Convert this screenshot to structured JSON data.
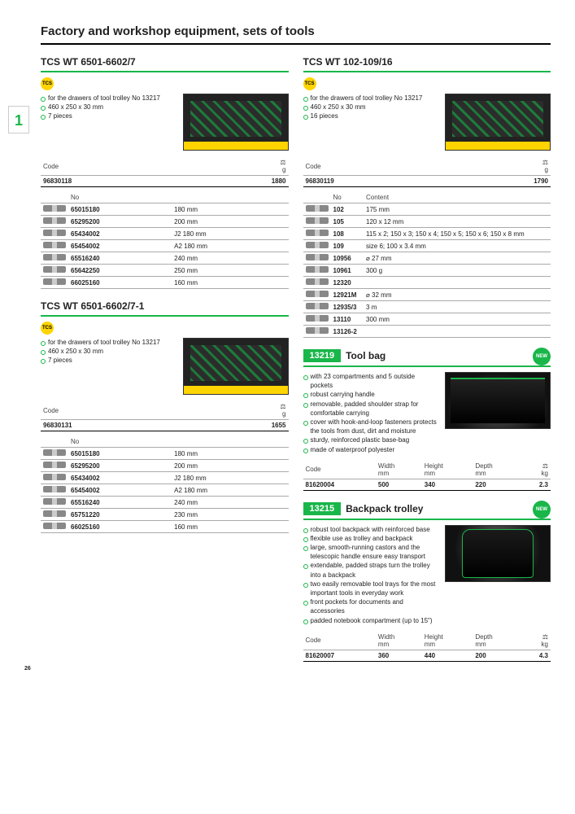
{
  "page": {
    "title": "Factory and workshop equipment, sets of tools",
    "section_number": "1",
    "page_number": "26"
  },
  "tcs_badge": "TCS",
  "new_badge": "NEW",
  "headers": {
    "code": "Code",
    "no": "No",
    "content": "Content",
    "g": "g",
    "kg": "kg",
    "width": "Width",
    "height": "Height",
    "depth": "Depth",
    "mm": "mm"
  },
  "p1": {
    "title": "TCS WT 6501-6602/7",
    "bullets": [
      "for the drawers of tool trolley No 13217",
      "460 x 250 x 30 mm",
      "7 pieces"
    ],
    "code": "96830118",
    "weight": "1880",
    "items": [
      {
        "no": "65015180",
        "spec": "180 mm"
      },
      {
        "no": "65295200",
        "spec": "200 mm"
      },
      {
        "no": "65434002",
        "spec": "J2 180 mm"
      },
      {
        "no": "65454002",
        "spec": "A2 180 mm"
      },
      {
        "no": "65516240",
        "spec": "240 mm"
      },
      {
        "no": "65642250",
        "spec": "250 mm"
      },
      {
        "no": "66025160",
        "spec": "160 mm"
      }
    ]
  },
  "p2": {
    "title": "TCS WT 6501-6602/7-1",
    "bullets": [
      "for the drawers of tool trolley No 13217",
      "460 x 250 x 30 mm",
      "7 pieces"
    ],
    "code": "96830131",
    "weight": "1655",
    "items": [
      {
        "no": "65015180",
        "spec": "180 mm"
      },
      {
        "no": "65295200",
        "spec": "200 mm"
      },
      {
        "no": "65434002",
        "spec": "J2 180 mm"
      },
      {
        "no": "65454002",
        "spec": "A2 180 mm"
      },
      {
        "no": "65516240",
        "spec": "240 mm"
      },
      {
        "no": "65751220",
        "spec": "230 mm"
      },
      {
        "no": "66025160",
        "spec": "160 mm"
      }
    ]
  },
  "p3": {
    "title": "TCS WT 102-109/16",
    "bullets": [
      "for the drawers of tool trolley No 13217",
      "460 x 250 x 30 mm",
      "16 pieces"
    ],
    "code": "96830119",
    "weight": "1790",
    "items": [
      {
        "no": "102",
        "spec": "175 mm"
      },
      {
        "no": "105",
        "spec": "120 x 12 mm"
      },
      {
        "no": "108",
        "spec": "115 x 2; 150 x 3; 150 x 4; 150 x 5; 150 x 6; 150 x 8 mm"
      },
      {
        "no": "109",
        "spec": "size 6; 100 x 3.4 mm"
      },
      {
        "no": "10956",
        "spec": "⌀ 27 mm"
      },
      {
        "no": "10961",
        "spec": "300 g"
      },
      {
        "no": "12320",
        "spec": ""
      },
      {
        "no": "12921M",
        "spec": "⌀ 32 mm"
      },
      {
        "no": "12935/3",
        "spec": "3 m"
      },
      {
        "no": "13110",
        "spec": "300 mm"
      },
      {
        "no": "13126-2",
        "spec": ""
      }
    ]
  },
  "p4": {
    "sku": "13219",
    "name": "Tool bag",
    "bullets": [
      "with 23 compartments and 5 outside pockets",
      "robust carrying handle",
      "removable, padded shoulder strap for comfortable carrying",
      "cover with hook-and-loop fasteners protects the tools from dust, dirt and moisture",
      "sturdy, reinforced plastic base-bag",
      "made of waterproof polyester"
    ],
    "row": {
      "code": "81620004",
      "w": "500",
      "h": "340",
      "d": "220",
      "kg": "2.3"
    }
  },
  "p5": {
    "sku": "13215",
    "name": "Backpack trolley",
    "bullets": [
      "robust tool backpack with reinforced base",
      "flexible use as trolley and backpack",
      "large, smooth-running castors and the telescopic handle ensure easy transport",
      "extendable, padded straps turn the trolley into a backpack",
      "two easily removable tool trays for the most important tools in everyday work",
      "front pockets for documents and accessories",
      "padded notebook compartment (up to 15\")"
    ],
    "row": {
      "code": "81620007",
      "w": "360",
      "h": "440",
      "d": "200",
      "kg": "4.3"
    }
  }
}
